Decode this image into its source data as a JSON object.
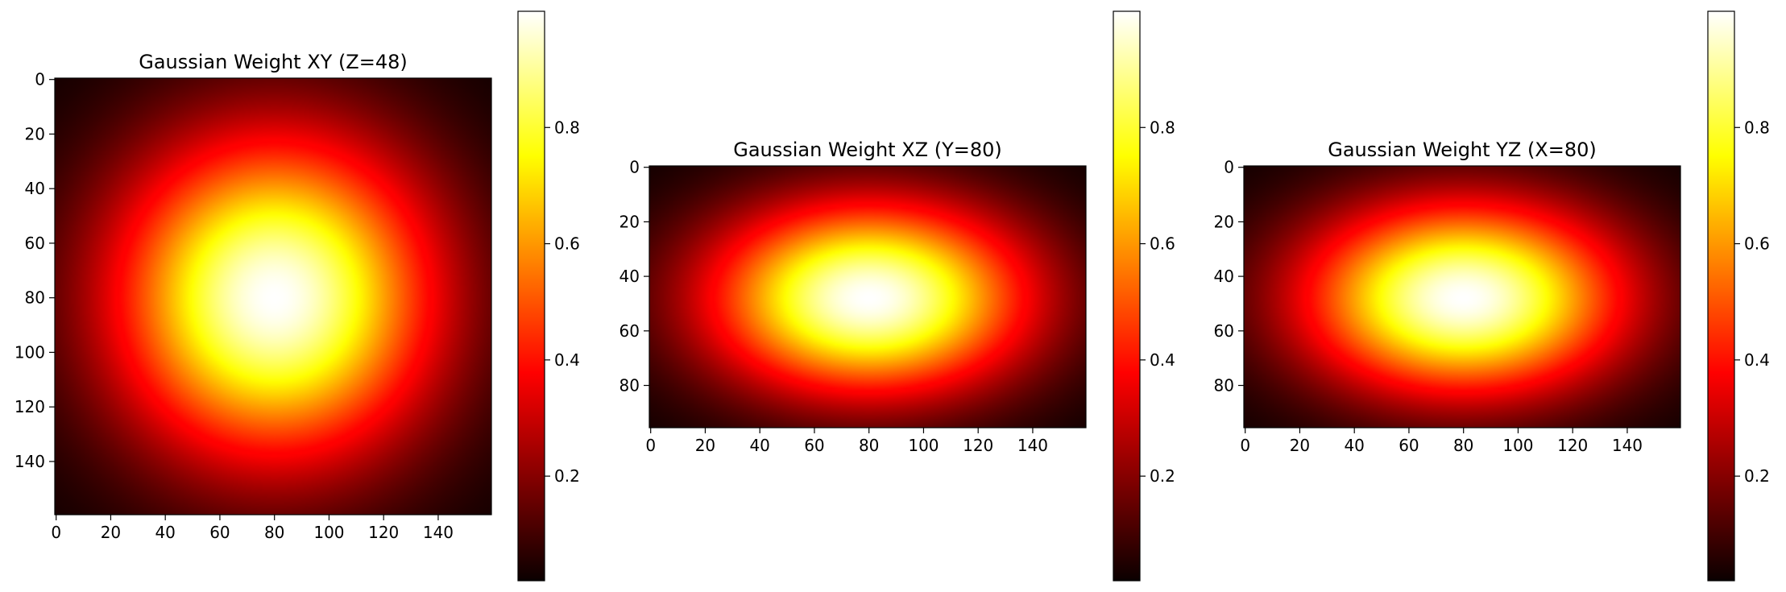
{
  "chart_data": [
    {
      "type": "heatmap",
      "title": "Gaussian Weight XY (Z=48)",
      "xlabel": "",
      "ylabel": "",
      "x_ticks": [
        0,
        20,
        40,
        60,
        80,
        100,
        120,
        140
      ],
      "y_ticks": [
        0,
        20,
        40,
        60,
        80,
        100,
        120,
        140
      ],
      "x_range": [
        -0.5,
        159.5
      ],
      "y_range": [
        -0.5,
        159.5
      ],
      "y_inverted": true,
      "center": [
        80,
        80
      ],
      "sigma": [
        40,
        40
      ],
      "colormap": "hot",
      "colorbar": {
        "ticks": [
          0.2,
          0.4,
          0.6,
          0.8
        ],
        "range": [
          0.02,
          1.0
        ]
      }
    },
    {
      "type": "heatmap",
      "title": "Gaussian Weight XZ (Y=80)",
      "xlabel": "",
      "ylabel": "",
      "x_ticks": [
        0,
        20,
        40,
        60,
        80,
        100,
        120,
        140
      ],
      "y_ticks": [
        0,
        20,
        40,
        60,
        80
      ],
      "x_range": [
        -0.5,
        159.5
      ],
      "y_range": [
        -0.5,
        95.5
      ],
      "y_inverted": true,
      "center": [
        80,
        48
      ],
      "sigma": [
        40,
        24
      ],
      "colormap": "hot",
      "colorbar": {
        "ticks": [
          0.2,
          0.4,
          0.6,
          0.8
        ],
        "range": [
          0.02,
          1.0
        ]
      }
    },
    {
      "type": "heatmap",
      "title": "Gaussian Weight YZ (X=80)",
      "xlabel": "",
      "ylabel": "",
      "x_ticks": [
        0,
        20,
        40,
        60,
        80,
        100,
        120,
        140
      ],
      "y_ticks": [
        0,
        20,
        40,
        60,
        80
      ],
      "x_range": [
        -0.5,
        159.5
      ],
      "y_range": [
        -0.5,
        95.5
      ],
      "y_inverted": true,
      "center": [
        80,
        48
      ],
      "sigma": [
        40,
        24
      ],
      "colormap": "hot",
      "colorbar": {
        "ticks": [
          0.2,
          0.4,
          0.6,
          0.8
        ],
        "range": [
          0.02,
          1.0
        ]
      }
    }
  ]
}
